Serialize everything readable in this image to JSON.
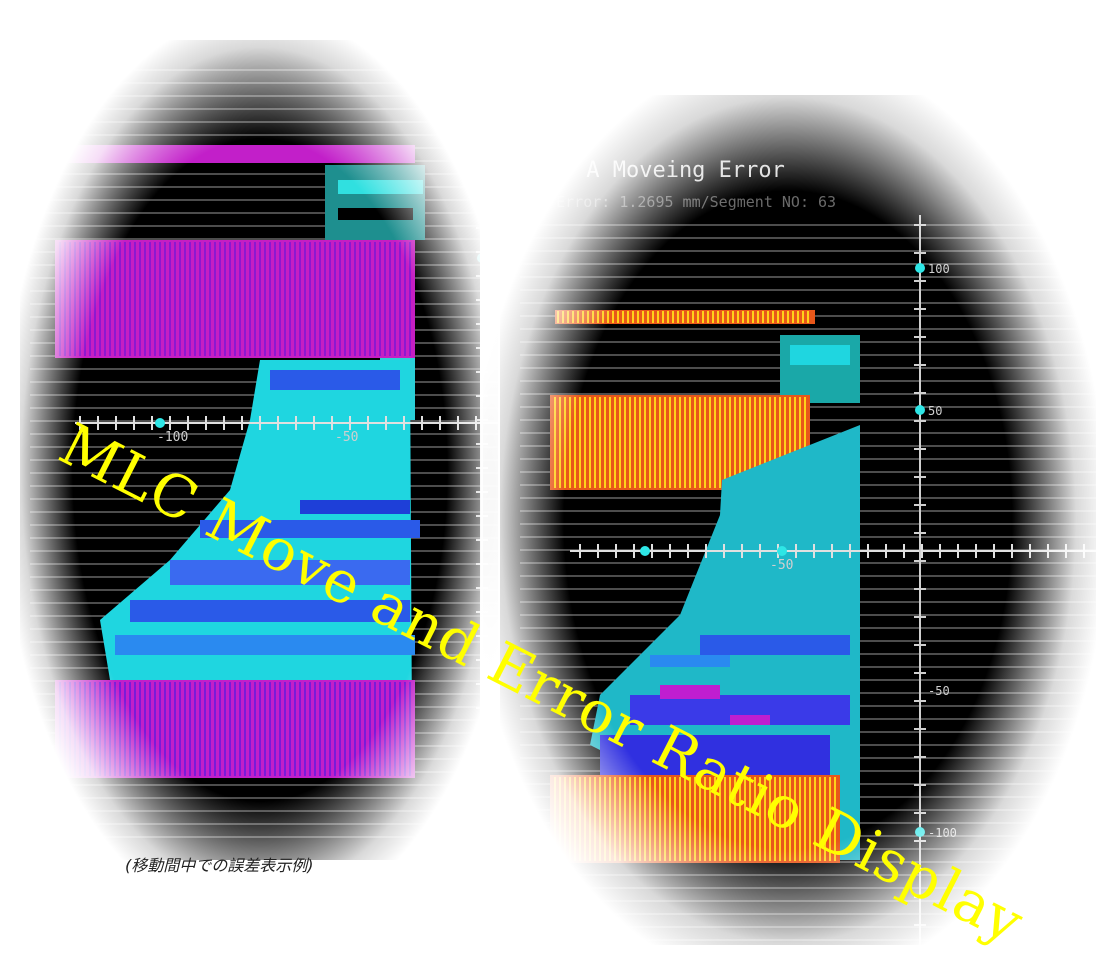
{
  "left_panel": {
    "axis_label": "-100",
    "axis_label_2": "-50",
    "caption": "(移動間中での誤差表示例)"
  },
  "right_panel": {
    "title": "Leaf A Moveing Error",
    "subtitle": "Max Error: 1.2695 mm/Segment NO: 63",
    "axis_labels": {
      "y_top": "100",
      "y_mid": "50",
      "y_low": "-50",
      "y_bottom": "-100",
      "x_label": "-50"
    }
  },
  "overlay_text": "MLC Move and Error Ratio Display",
  "colors": {
    "magenta": "#d81fbf",
    "cyan": "#2ee6e6",
    "teal": "#22a0a0",
    "blue": "#2844e8",
    "orange": "#e85a1a",
    "yellow": "#ffff00"
  }
}
